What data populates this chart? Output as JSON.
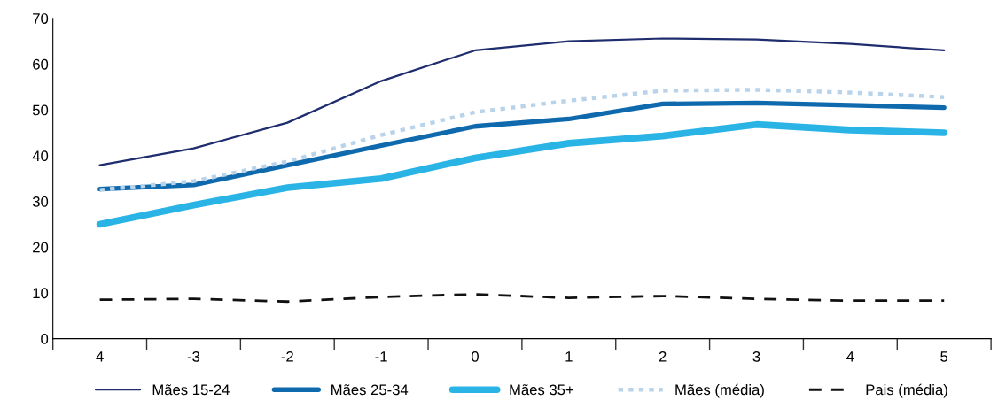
{
  "chart_data": {
    "type": "line",
    "categories": [
      "4",
      "-3",
      "-2",
      "-1",
      "0",
      "1",
      "2",
      "3",
      "4",
      "5"
    ],
    "ylim": [
      0,
      70
    ],
    "yticks": [
      0,
      10,
      20,
      30,
      40,
      50,
      60,
      70
    ],
    "grid": false,
    "legend": "bottom",
    "marker": "none",
    "series": [
      {
        "name": "Mães 15-24",
        "color": "#1f2d6e",
        "line_style": "solid",
        "values": [
          37.9,
          41.6,
          47.2,
          56.3,
          63.0,
          65.0,
          65.6,
          65.4,
          64.4,
          63.0
        ]
      },
      {
        "name": "Mães 25-34",
        "color": "#0f69ad",
        "line_style": "solid",
        "values": [
          32.7,
          33.6,
          37.9,
          42.2,
          46.4,
          48.0,
          51.3,
          51.5,
          51.0,
          50.5
        ]
      },
      {
        "name": "Mães 35+",
        "color": "#2ab4e6",
        "line_style": "solid",
        "values": [
          25.0,
          29.2,
          33.0,
          35.0,
          39.5,
          42.7,
          44.3,
          46.8,
          45.6,
          45.0
        ]
      },
      {
        "name": "Mães (média)",
        "color": "#b9d3ea",
        "line_style": "dotted",
        "values": [
          32.5,
          34.4,
          38.7,
          44.5,
          49.5,
          52.0,
          54.2,
          54.4,
          53.8,
          52.8
        ]
      },
      {
        "name": "Pais (média)",
        "color": "#111111",
        "line_style": "dashed",
        "values": [
          8.5,
          8.7,
          8.1,
          9.1,
          9.7,
          8.9,
          9.3,
          8.7,
          8.3,
          8.3
        ]
      }
    ]
  }
}
